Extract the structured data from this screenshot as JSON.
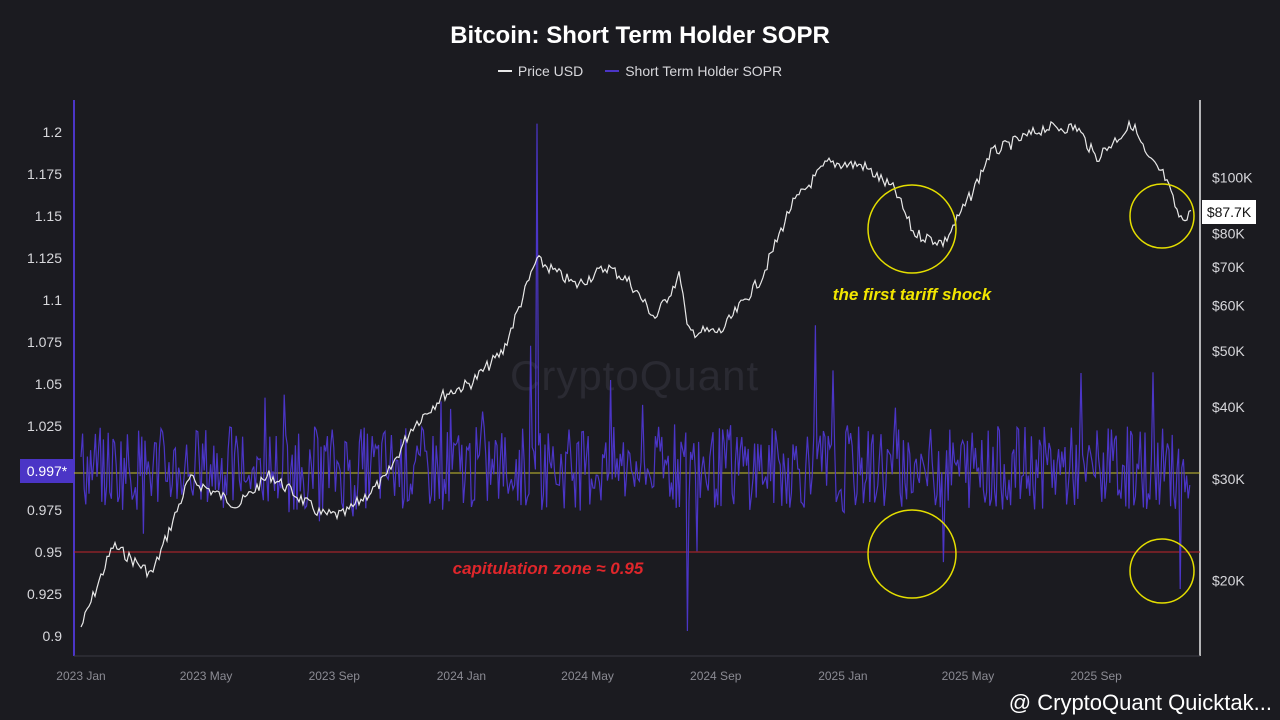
{
  "chart_data": {
    "type": "line",
    "title": "Bitcoin: Short Term Holder SOPR",
    "legend_position": "top-center",
    "grid": false,
    "series": [
      {
        "name": "Price USD",
        "color": "#e8e8e8",
        "axis": "right",
        "x": [
          "2023-01-01",
          "2023-02-01",
          "2023-03-10",
          "2023-04-15",
          "2023-06-01",
          "2023-07-01",
          "2023-08-20",
          "2023-09-10",
          "2023-10-20",
          "2023-11-15",
          "2023-12-15",
          "2024-01-10",
          "2024-02-10",
          "2024-03-13",
          "2024-04-20",
          "2024-05-20",
          "2024-06-10",
          "2024-07-05",
          "2024-07-29",
          "2024-08-05",
          "2024-09-06",
          "2024-10-15",
          "2024-11-12",
          "2024-12-17",
          "2025-01-20",
          "2025-02-20",
          "2025-03-10",
          "2025-04-08",
          "2025-05-05",
          "2025-05-22",
          "2025-07-14",
          "2025-08-14",
          "2025-09-01",
          "2025-10-06",
          "2025-10-20",
          "2025-11-05",
          "2025-11-21",
          "2025-12-01"
        ],
        "values": [
          16600,
          23000,
          20500,
          30000,
          27000,
          30500,
          26000,
          26000,
          30000,
          37000,
          42000,
          44000,
          50000,
          72000,
          65000,
          70000,
          66000,
          57000,
          68000,
          54000,
          54000,
          67000,
          89000,
          106000,
          105000,
          95000,
          80000,
          77000,
          94000,
          110000,
          122000,
          122000,
          108000,
          124000,
          108000,
          101000,
          84000,
          87700
        ]
      },
      {
        "name": "Short Term Holder SOPR",
        "color": "#4b35c6",
        "axis": "left"
      }
    ],
    "left_axis": {
      "ticks": [
        "0.9",
        "0.925",
        "0.95",
        "0.975",
        "0.997*",
        "1.025",
        "1.05",
        "1.075",
        "1.1",
        "1.125",
        "1.15",
        "1.175",
        "1.2"
      ],
      "range": [
        0.9,
        1.2
      ]
    },
    "right_axis": {
      "ticks": [
        "$20K",
        "$30K",
        "$40K",
        "$50K",
        "$60K",
        "$70K",
        "$80K",
        "$100K"
      ],
      "scale": "log",
      "current_price_label": "$87.7K"
    },
    "x_ticks": [
      "2023 Jan",
      "2023 May",
      "2023 Sep",
      "2024 Jan",
      "2024 May",
      "2024 Sep",
      "2025 Jan",
      "2025 May",
      "2025 Sep"
    ],
    "reference_lines": [
      {
        "value": 0.997,
        "color": "#c9c230"
      },
      {
        "value": 0.95,
        "color": "#c0262b"
      }
    ],
    "annotations": [
      {
        "text": "the first tariff shock",
        "color": "#f2e600"
      },
      {
        "text": "capitulation zone ≈ 0.95",
        "color": "#e0262b"
      }
    ],
    "sopr_spikes": [
      {
        "x": "2024-03-13",
        "value": 1.205
      },
      {
        "x": "2024-08-05",
        "value": 0.903
      },
      {
        "x": "2024-12-06",
        "value": 1.085
      },
      {
        "x": "2025-04-08",
        "value": 0.944
      },
      {
        "x": "2025-11-21",
        "value": 0.928
      }
    ]
  },
  "watermark": "CryptoQuant",
  "footer": "@ CryptoQuant Quicktak..."
}
